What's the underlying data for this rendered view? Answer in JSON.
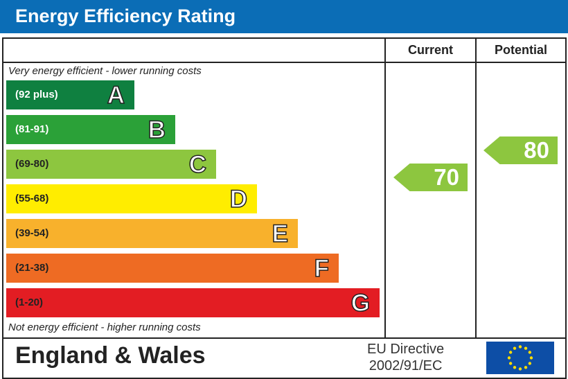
{
  "title": "Energy Efficiency Rating",
  "columns": {
    "current": "Current",
    "potential": "Potential"
  },
  "top_note": "Very energy efficient - lower running costs",
  "bottom_note": "Not energy efficient - higher running costs",
  "footer": {
    "country": "England & Wales",
    "directive_line1": "EU Directive",
    "directive_line2": "2002/91/EC",
    "flag": "eu-flag-icon"
  },
  "colors": {
    "title_bar": "#0b6db6"
  },
  "chart_data": {
    "type": "bar",
    "bands": [
      {
        "letter": "A",
        "range": "(92 plus)",
        "color": "#0f8040",
        "text_dark": false
      },
      {
        "letter": "B",
        "range": "(81-91)",
        "color": "#2ba138",
        "text_dark": false
      },
      {
        "letter": "C",
        "range": "(69-80)",
        "color": "#8dc63f",
        "text_dark": true
      },
      {
        "letter": "D",
        "range": "(55-68)",
        "color": "#ffed00",
        "text_dark": true
      },
      {
        "letter": "E",
        "range": "(39-54)",
        "color": "#f8b12c",
        "text_dark": true
      },
      {
        "letter": "F",
        "range": "(21-38)",
        "color": "#ee6b23",
        "text_dark": true
      },
      {
        "letter": "G",
        "range": "(1-20)",
        "color": "#e31d23",
        "text_dark": true
      }
    ],
    "current": {
      "value": "70",
      "band": "C",
      "color": "#8dc63f"
    },
    "potential": {
      "value": "80",
      "band": "C",
      "color": "#8dc63f"
    }
  }
}
